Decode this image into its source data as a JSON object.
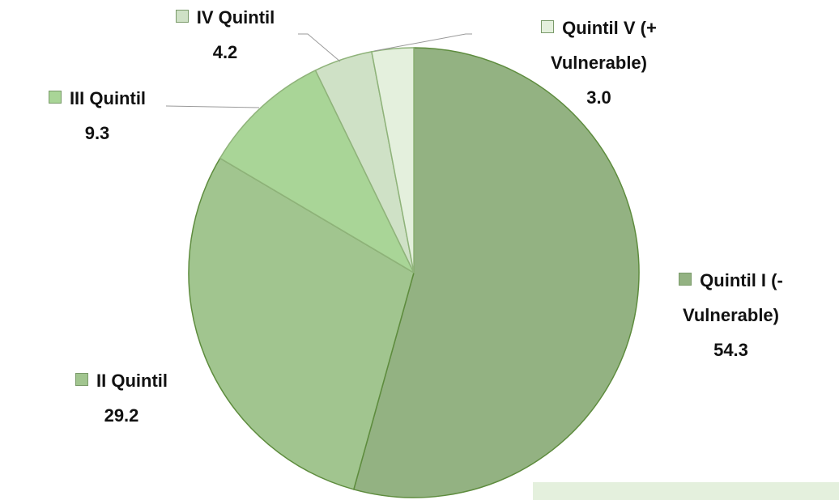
{
  "chart_data": {
    "type": "pie",
    "categories": [
      "Quintil I (- Vulnerable)",
      "II Quintil",
      "III Quintil",
      "IV Quintil",
      "Quintil V (+ Vulnerable)"
    ],
    "values": [
      54.3,
      29.2,
      9.3,
      4.2,
      3.0
    ],
    "value_labels": [
      "54.3",
      "29.2",
      "9.3",
      "4.2",
      "3.0"
    ],
    "colors": [
      "#93b282",
      "#a1c58f",
      "#a9d597",
      "#cfe1c6",
      "#e4f0dd"
    ]
  }
}
